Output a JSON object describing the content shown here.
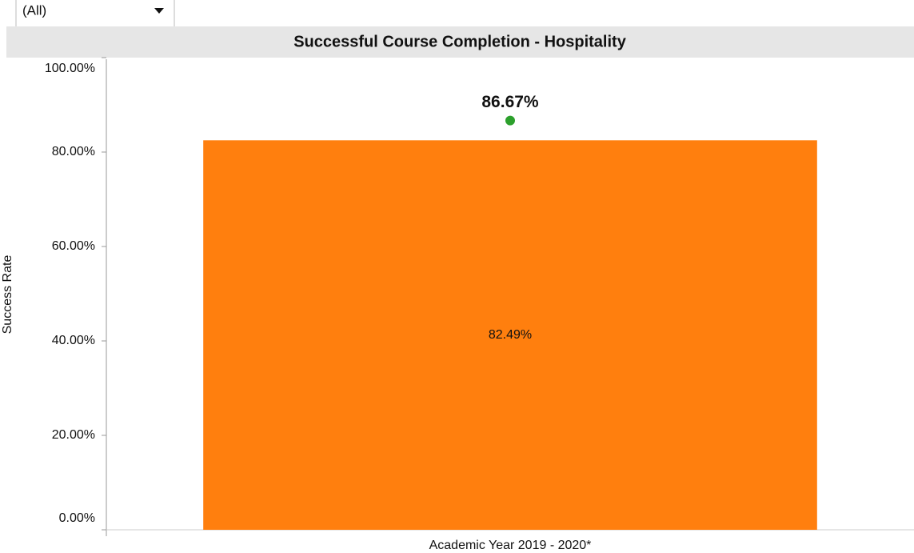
{
  "filter": {
    "value": "(All)"
  },
  "chart_data": {
    "type": "bar",
    "title": "Successful Course Completion - Hospitality",
    "y_label": "Success Rate",
    "categories": [
      "Academic Year 2019 - 2020*"
    ],
    "series": [
      {
        "type": "bar",
        "color": "#ff7f0e",
        "values": [
          82.49
        ],
        "value_labels": [
          "82.49%"
        ]
      },
      {
        "type": "scatter",
        "color": "#2ca02c",
        "values": [
          86.67
        ],
        "value_labels": [
          "86.67%"
        ]
      }
    ],
    "ylim": [
      0,
      100
    ],
    "yticks": [
      {
        "value": 0,
        "label": "0.00%"
      },
      {
        "value": 20,
        "label": "20.00%"
      },
      {
        "value": 40,
        "label": "40.00%"
      },
      {
        "value": 60,
        "label": "60.00%"
      },
      {
        "value": 80,
        "label": "80.00%"
      },
      {
        "value": 100,
        "label": "100.00%"
      }
    ]
  }
}
